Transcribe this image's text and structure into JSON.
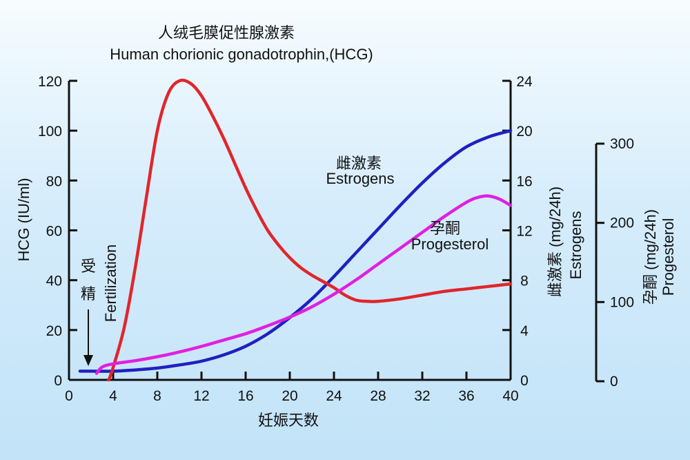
{
  "chart_data": {
    "type": "line",
    "title_cn": "人绒毛膜促性腺激素",
    "title_en": "Human chorionic gonadotrophin,(HCG)",
    "xlabel": "妊娠天数",
    "x_ticks": [
      0,
      4,
      8,
      12,
      16,
      20,
      24,
      28,
      32,
      36,
      40
    ],
    "xlim": [
      0,
      40
    ],
    "axes": {
      "left": {
        "label": "HCG (IU/ml)",
        "ticks": [
          0,
          20,
          40,
          60,
          80,
          100,
          120
        ],
        "ylim": [
          0,
          120
        ]
      },
      "right1": {
        "label": "雌激素 (mg/24h)",
        "label2": "Estrogens",
        "ticks": [
          0,
          4,
          8,
          12,
          16,
          20,
          24
        ],
        "ylim": [
          0,
          24
        ]
      },
      "right2": {
        "label": "孕酮 (mg/24h)",
        "label2": "Progesterol",
        "ticks": [
          0,
          100,
          200,
          300
        ],
        "ylim": [
          0,
          300
        ]
      }
    },
    "annotations": {
      "fertilization_cn_1": "受",
      "fertilization_cn_2": "精",
      "fertilization_en": "Fertilization"
    },
    "series": [
      {
        "name_cn": "",
        "name": "",
        "axis": "left",
        "color": "#e0262b",
        "x": [
          3.6,
          4,
          5,
          6,
          7,
          8,
          9,
          10,
          11,
          12,
          13,
          14,
          15,
          16,
          17,
          18,
          19,
          20,
          21,
          22,
          23,
          24,
          25,
          26,
          27,
          28,
          30,
          32,
          34,
          36,
          38,
          40
        ],
        "y": [
          0,
          5,
          21,
          45,
          73,
          100,
          115,
          120,
          119,
          114,
          106,
          97,
          87,
          77,
          68,
          60,
          54,
          49,
          45,
          42,
          39.5,
          37,
          34,
          32,
          31.5,
          31.5,
          32.5,
          34,
          35.5,
          36.5,
          37.5,
          38.5
        ]
      },
      {
        "name_cn": "雌激素",
        "name": "Estrogens",
        "axis": "right1",
        "color": "#2020c0",
        "x": [
          1,
          2,
          4,
          6,
          8,
          10,
          12,
          14,
          16,
          18,
          20,
          22,
          24,
          26,
          28,
          30,
          32,
          34,
          36,
          38,
          40
        ],
        "y": [
          0.7,
          0.7,
          0.7,
          0.8,
          0.95,
          1.2,
          1.5,
          2.0,
          2.7,
          3.7,
          5.0,
          6.5,
          8.3,
          10.2,
          12.1,
          14.0,
          15.8,
          17.4,
          18.7,
          19.5,
          20.0
        ]
      },
      {
        "name_cn": "孕酮",
        "name": "Progesterol",
        "axis": "right2",
        "color": "#e020e0",
        "x": [
          2.5,
          3,
          4,
          6,
          8,
          10,
          12,
          14,
          16,
          18,
          20,
          22,
          24,
          26,
          28,
          30,
          32,
          34,
          36,
          37,
          38,
          39,
          40
        ],
        "y": [
          10,
          18,
          22,
          26,
          31,
          37,
          44,
          52,
          60,
          70,
          81,
          94,
          110,
          128,
          148,
          168,
          188,
          208,
          226,
          232,
          234,
          230,
          222
        ]
      }
    ]
  }
}
